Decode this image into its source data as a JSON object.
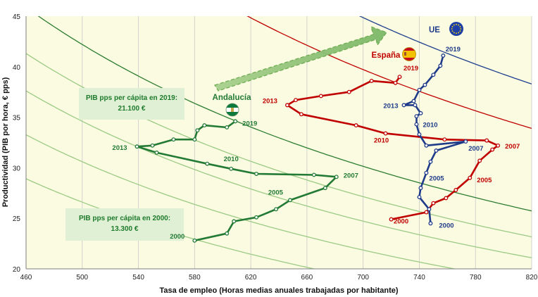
{
  "chart_data": {
    "type": "line",
    "xlabel": "Tasa de empleo (Horas medias anuales trabajadas por habitante)",
    "ylabel": "Productividad (PIB por hora, € pps)",
    "xlim": [
      460,
      820
    ],
    "ylim": [
      20,
      45
    ],
    "x_ticks": [
      460,
      500,
      540,
      580,
      620,
      660,
      700,
      740,
      780,
      820
    ],
    "y_ticks": [
      20,
      25,
      30,
      35,
      40,
      45
    ],
    "grid": "vertical",
    "plot_background": "#fafbe0",
    "iso_curves": [
      {
        "color": "#1f3f8f",
        "level": 31400
      },
      {
        "color": "#c00000",
        "level": 27800
      },
      {
        "color": "#2e7d32",
        "level": 21100
      },
      {
        "color": "#9cca85",
        "level": 19000
      },
      {
        "color": "#9cca85",
        "level": 17300
      },
      {
        "color": "#9cca85",
        "level": 15300
      },
      {
        "color": "#9cca85",
        "level": 13300
      }
    ],
    "series": [
      {
        "name": "Andalucía",
        "color": "#237a35",
        "x": [
          580,
          603,
          608,
          624,
          638,
          648,
          673,
          681,
          665,
          624,
          606,
          589,
          553,
          539,
          550,
          565,
          580,
          582,
          587,
          603,
          609
        ],
        "y": [
          22.8,
          23.5,
          24.7,
          25.1,
          25.9,
          26.8,
          28.0,
          29.1,
          29.3,
          29.4,
          29.9,
          30.4,
          31.5,
          32.1,
          32.2,
          32.8,
          32.8,
          33.7,
          34.2,
          34.0,
          34.6
        ],
        "labels": [
          {
            "x": 580,
            "y": 22.8,
            "text": "2000"
          },
          {
            "x": 648,
            "y": 26.8,
            "text": "2005"
          },
          {
            "x": 681,
            "y": 29.1,
            "text": "2007"
          },
          {
            "x": 606,
            "y": 29.9,
            "text": "2010"
          },
          {
            "x": 539,
            "y": 32.1,
            "text": "2013"
          },
          {
            "x": 609,
            "y": 34.6,
            "text": "2019"
          }
        ]
      },
      {
        "name": "España",
        "color": "#c00000",
        "x": [
          720,
          745,
          750,
          759,
          766,
          776,
          783,
          792,
          796,
          788,
          758,
          716,
          695,
          656,
          646,
          652,
          670,
          690,
          706,
          723,
          726
        ],
        "y": [
          24.9,
          25.6,
          26.5,
          27.0,
          27.8,
          29.0,
          30.7,
          31.8,
          32.2,
          32.7,
          32.8,
          33.4,
          34.2,
          35.3,
          36.2,
          36.7,
          37.1,
          37.5,
          38.6,
          38.4,
          39.0
        ],
        "labels": [
          {
            "x": 720,
            "y": 24.9,
            "text": "2000"
          },
          {
            "x": 776,
            "y": 29.0,
            "text": "2005"
          },
          {
            "x": 796,
            "y": 32.2,
            "text": "2007"
          },
          {
            "x": 716,
            "y": 33.4,
            "text": "2010"
          },
          {
            "x": 646,
            "y": 36.2,
            "text": "2013"
          },
          {
            "x": 726,
            "y": 39.0,
            "text": "2019"
          }
        ]
      },
      {
        "name": "UE",
        "color": "#1f3b8a",
        "x": [
          748,
          747,
          740,
          741,
          745,
          748,
          752,
          773,
          745,
          740,
          738,
          738,
          741,
          737,
          729,
          736,
          740,
          744,
          750,
          755,
          757
        ],
        "y": [
          24.5,
          25.9,
          27.1,
          28.0,
          29.5,
          30.6,
          31.7,
          32.6,
          32.2,
          33.3,
          34.3,
          35.1,
          35.4,
          36.2,
          36.2,
          36.6,
          37.7,
          38.2,
          39.2,
          40.1,
          41.1
        ],
        "labels": [
          {
            "x": 748,
            "y": 24.5,
            "text": "2000"
          },
          {
            "x": 745,
            "y": 29.5,
            "text": "2005"
          },
          {
            "x": 773,
            "y": 32.6,
            "text": "2007"
          },
          {
            "x": 738,
            "y": 34.3,
            "text": "2010"
          },
          {
            "x": 729,
            "y": 36.2,
            "text": "2013"
          },
          {
            "x": 757,
            "y": 41.1,
            "text": "2019"
          }
        ]
      }
    ],
    "annotations": [
      {
        "text_lines": [
          "PIB pps per cápita en 2019:",
          "21.100 €"
        ],
        "color": "#1e7a2c",
        "fill": "#dff0d4"
      },
      {
        "text_lines": [
          "PIB pps per cápita en 2000:",
          "13.300 €"
        ],
        "color": "#1e7a2c",
        "fill": "#dff0d4"
      }
    ]
  }
}
